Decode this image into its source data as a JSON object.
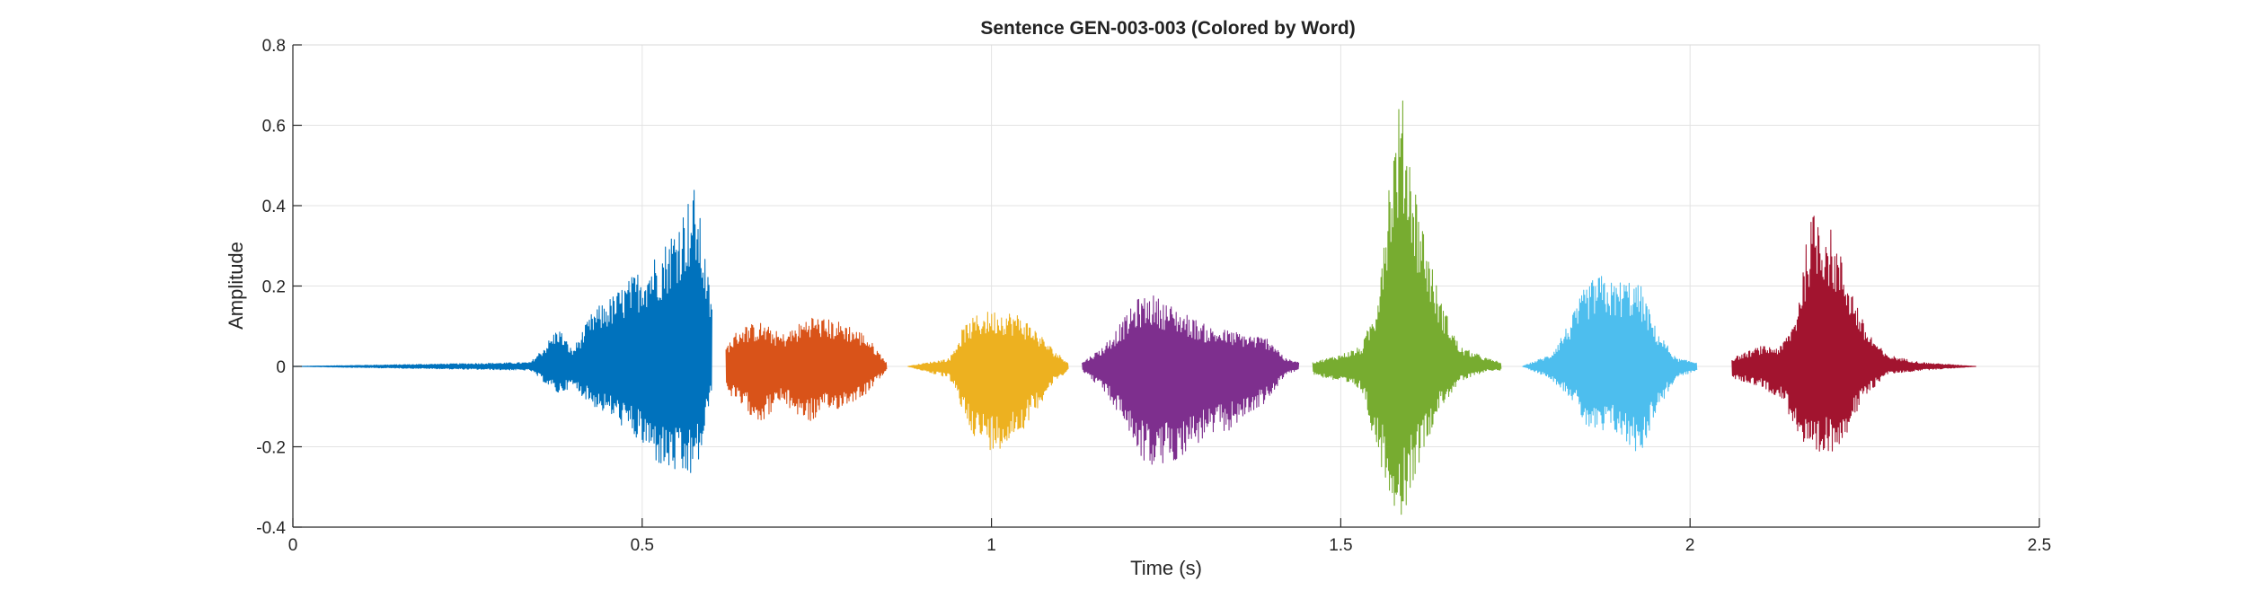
{
  "chart_data": {
    "type": "line",
    "title": "Sentence GEN-003-003 (Colored by Word)",
    "xlabel": "Time (s)",
    "ylabel": "Amplitude",
    "xlim": [
      0,
      2.5
    ],
    "ylim": [
      -0.4,
      0.8
    ],
    "x_ticks": [
      0,
      0.5,
      1,
      1.5,
      2,
      2.5
    ],
    "x_tick_labels": [
      "0",
      "0.5",
      "1",
      "1.5",
      "2",
      "2.5"
    ],
    "y_ticks": [
      -0.4,
      -0.2,
      0,
      0.2,
      0.4,
      0.6,
      0.8
    ],
    "y_tick_labels": [
      "-0.4",
      "-0.2",
      "0",
      "0.2",
      "0.4",
      "0.6",
      "0.8"
    ],
    "grid": true,
    "series": [
      {
        "color": "#0072BD",
        "x": [
          0.0,
          0.34,
          0.36,
          0.38,
          0.4,
          0.43,
          0.46,
          0.5,
          0.53,
          0.55,
          0.56,
          0.575,
          0.585,
          0.6
        ],
        "y_max": [
          0.0,
          0.01,
          0.05,
          0.1,
          0.04,
          0.14,
          0.18,
          0.25,
          0.3,
          0.37,
          0.4,
          0.45,
          0.35,
          0.15
        ],
        "y_min": [
          0.0,
          -0.01,
          -0.04,
          -0.07,
          -0.05,
          -0.1,
          -0.13,
          -0.2,
          -0.26,
          -0.27,
          -0.29,
          -0.27,
          -0.22,
          -0.05
        ]
      },
      {
        "color": "#D95319",
        "x": [
          0.62,
          0.64,
          0.67,
          0.7,
          0.72,
          0.74,
          0.76,
          0.79,
          0.82,
          0.85
        ],
        "y_max": [
          0.05,
          0.1,
          0.11,
          0.08,
          0.1,
          0.13,
          0.12,
          0.11,
          0.08,
          0.01
        ],
        "y_min": [
          -0.06,
          -0.1,
          -0.14,
          -0.09,
          -0.12,
          -0.14,
          -0.12,
          -0.1,
          -0.07,
          -0.01
        ]
      },
      {
        "color": "#EDB120",
        "x": [
          0.88,
          0.94,
          0.96,
          0.98,
          1.0,
          1.02,
          1.04,
          1.06,
          1.09,
          1.11
        ],
        "y_max": [
          0.0,
          0.02,
          0.1,
          0.13,
          0.14,
          0.14,
          0.13,
          0.1,
          0.04,
          0.01
        ],
        "y_min": [
          0.0,
          -0.03,
          -0.12,
          -0.19,
          -0.21,
          -0.2,
          -0.17,
          -0.12,
          -0.04,
          -0.01
        ]
      },
      {
        "color": "#7E2F8E",
        "x": [
          1.13,
          1.16,
          1.19,
          1.21,
          1.23,
          1.26,
          1.29,
          1.31,
          1.34,
          1.37,
          1.4,
          1.42,
          1.44
        ],
        "y_max": [
          0.01,
          0.05,
          0.12,
          0.17,
          0.18,
          0.15,
          0.12,
          0.1,
          0.09,
          0.08,
          0.07,
          0.02,
          0.01
        ],
        "y_min": [
          -0.01,
          -0.06,
          -0.14,
          -0.22,
          -0.26,
          -0.24,
          -0.2,
          -0.18,
          -0.16,
          -0.12,
          -0.08,
          -0.02,
          -0.01
        ]
      },
      {
        "color": "#77AC30",
        "x": [
          1.46,
          1.5,
          1.53,
          1.55,
          1.57,
          1.585,
          1.59,
          1.61,
          1.64,
          1.67,
          1.71,
          1.73
        ],
        "y_max": [
          0.01,
          0.03,
          0.05,
          0.15,
          0.5,
          0.68,
          0.66,
          0.42,
          0.18,
          0.05,
          0.02,
          0.01
        ],
        "y_min": [
          -0.02,
          -0.04,
          -0.06,
          -0.2,
          -0.32,
          -0.38,
          -0.37,
          -0.25,
          -0.11,
          -0.04,
          -0.01,
          -0.01
        ]
      },
      {
        "color": "#4DBEEE",
        "x": [
          1.76,
          1.8,
          1.83,
          1.85,
          1.87,
          1.89,
          1.91,
          1.93,
          1.95,
          1.98,
          2.01
        ],
        "y_max": [
          0.0,
          0.03,
          0.12,
          0.2,
          0.23,
          0.21,
          0.22,
          0.2,
          0.1,
          0.02,
          0.01
        ],
        "y_min": [
          0.0,
          -0.03,
          -0.08,
          -0.15,
          -0.18,
          -0.16,
          -0.2,
          -0.22,
          -0.12,
          -0.03,
          -0.01
        ]
      },
      {
        "color": "#A2142F",
        "x": [
          2.06,
          2.1,
          2.13,
          2.15,
          2.17,
          2.18,
          2.2,
          2.22,
          2.25,
          2.28,
          2.33,
          2.41
        ],
        "y_max": [
          0.02,
          0.05,
          0.05,
          0.12,
          0.35,
          0.4,
          0.35,
          0.26,
          0.1,
          0.03,
          0.01,
          0.0
        ],
        "y_min": [
          -0.03,
          -0.05,
          -0.08,
          -0.15,
          -0.24,
          -0.25,
          -0.22,
          -0.18,
          -0.08,
          -0.02,
          -0.01,
          0.0
        ]
      }
    ]
  }
}
